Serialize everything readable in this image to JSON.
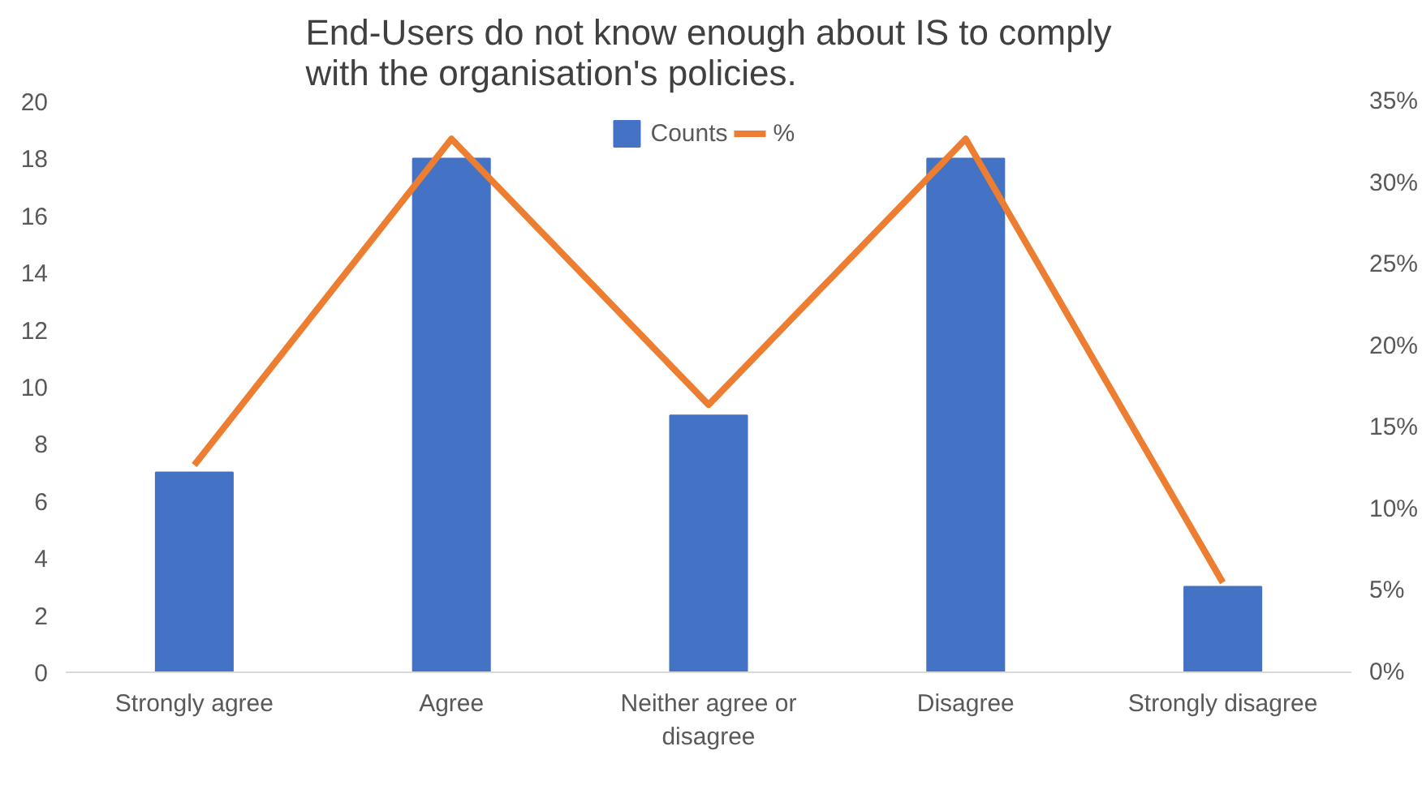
{
  "chart_data": {
    "type": "bar",
    "title": "End-Users do not know enough about IS to comply with the organisation's policies.",
    "categories": [
      "Strongly agree",
      "Agree",
      "Neither agree or disagree",
      "Disagree",
      "Strongly disagree"
    ],
    "series": [
      {
        "name": "Counts",
        "color": "#4472c4",
        "values": [
          7,
          18,
          9,
          18,
          3
        ]
      },
      {
        "name": "%",
        "type": "line",
        "axis": "y2",
        "color": "#ed7d31",
        "values": [
          12.7,
          32.7,
          16.4,
          32.7,
          5.5
        ]
      }
    ],
    "ylim": [
      0,
      20
    ],
    "yticks": [
      0,
      2,
      4,
      6,
      8,
      10,
      12,
      14,
      16,
      18,
      20
    ],
    "y2lim": [
      0,
      35
    ],
    "y2ticks": [
      {
        "value": 0,
        "label": "0%"
      },
      {
        "value": 5,
        "label": "5%"
      },
      {
        "value": 10,
        "label": "10%"
      },
      {
        "value": 15,
        "label": "15%"
      },
      {
        "value": 20,
        "label": "20%"
      },
      {
        "value": 25,
        "label": "25%"
      },
      {
        "value": 30,
        "label": "30%"
      },
      {
        "value": 35,
        "label": "35%"
      }
    ],
    "grid": false,
    "legend": "top"
  }
}
